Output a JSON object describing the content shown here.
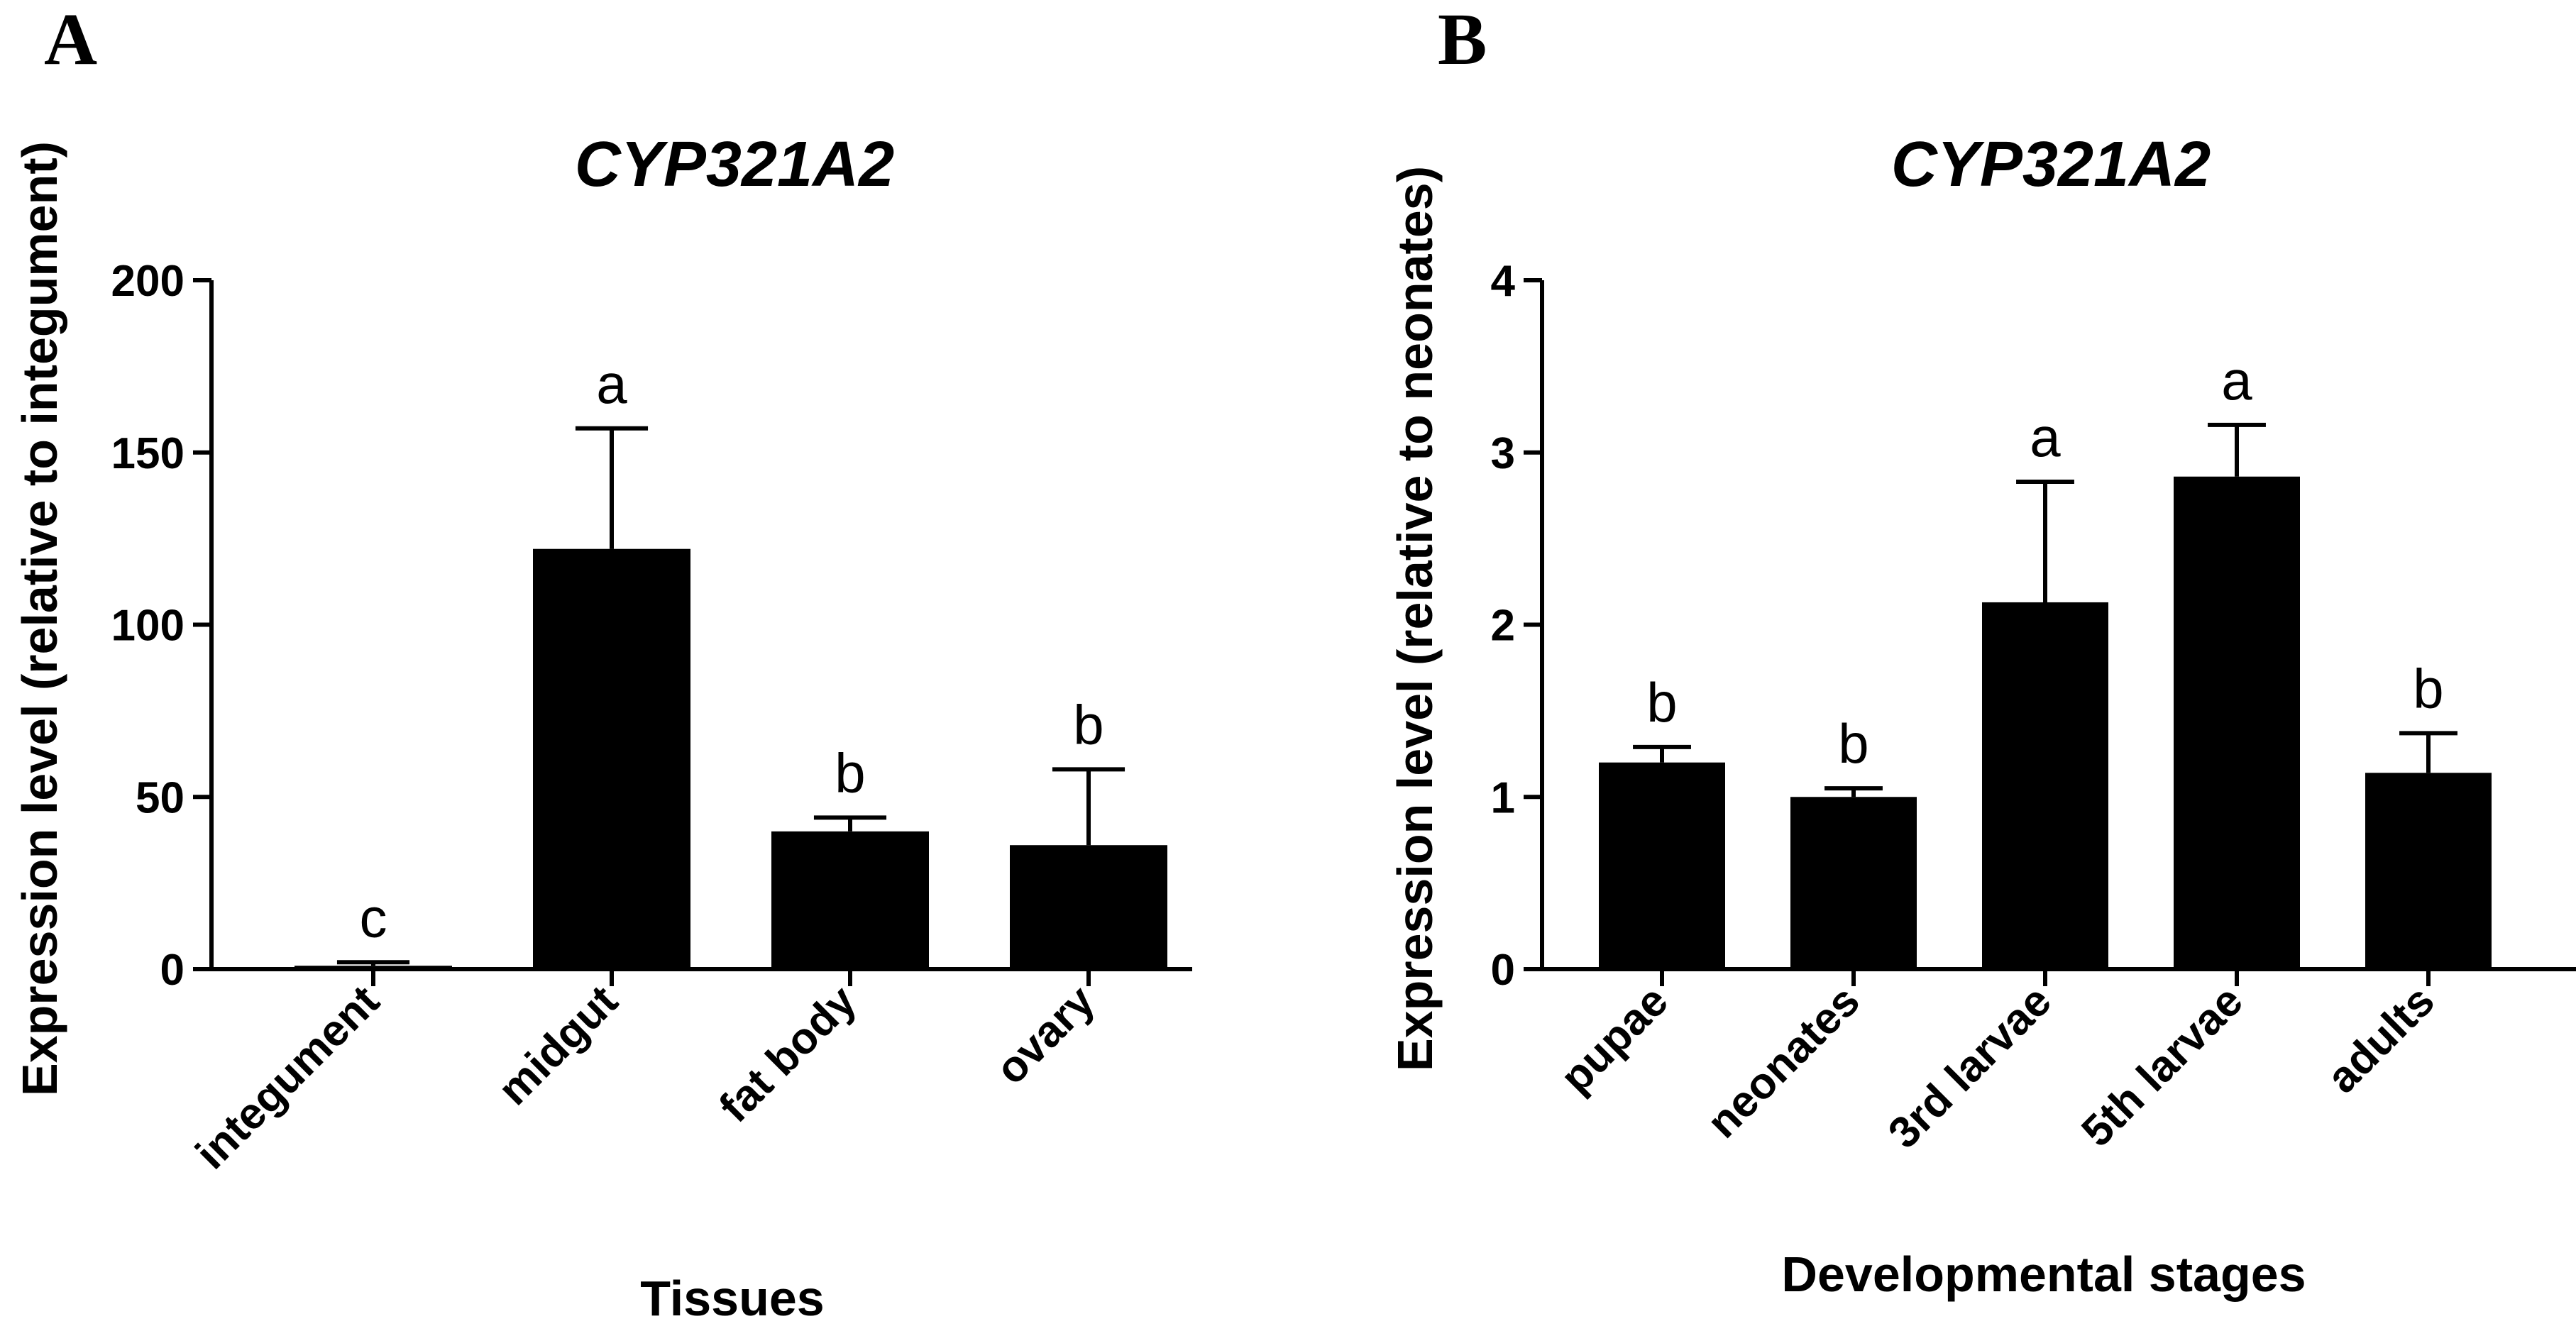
{
  "chart_data": [
    {
      "panel": "A",
      "type": "bar",
      "title": "CYP321A2",
      "xlabel": "Tissues",
      "ylabel": "Expression level (relative to integument)",
      "ylim": [
        0,
        200
      ],
      "yticks": [
        0,
        50,
        100,
        150,
        200
      ],
      "grid": false,
      "categories": [
        "integument",
        "midgut",
        "fat body",
        "ovary"
      ],
      "values": [
        1,
        122,
        40,
        36
      ],
      "errors": [
        1,
        35,
        4,
        22
      ],
      "significance": [
        "c",
        "a",
        "b",
        "b"
      ]
    },
    {
      "panel": "B",
      "type": "bar",
      "title": "CYP321A2",
      "xlabel": "Developmental stages",
      "ylabel": "Expression level (relative to neonates)",
      "ylim": [
        0,
        4
      ],
      "yticks": [
        0,
        1,
        2,
        3,
        4
      ],
      "grid": false,
      "categories": [
        "pupae",
        "neonates",
        "3rd larvae",
        "5th larvae",
        "adults"
      ],
      "values": [
        1.2,
        1.0,
        2.13,
        2.86,
        1.14
      ],
      "errors": [
        0.09,
        0.05,
        0.7,
        0.3,
        0.23
      ],
      "significance": [
        "b",
        "b",
        "a",
        "a",
        "b"
      ]
    }
  ]
}
